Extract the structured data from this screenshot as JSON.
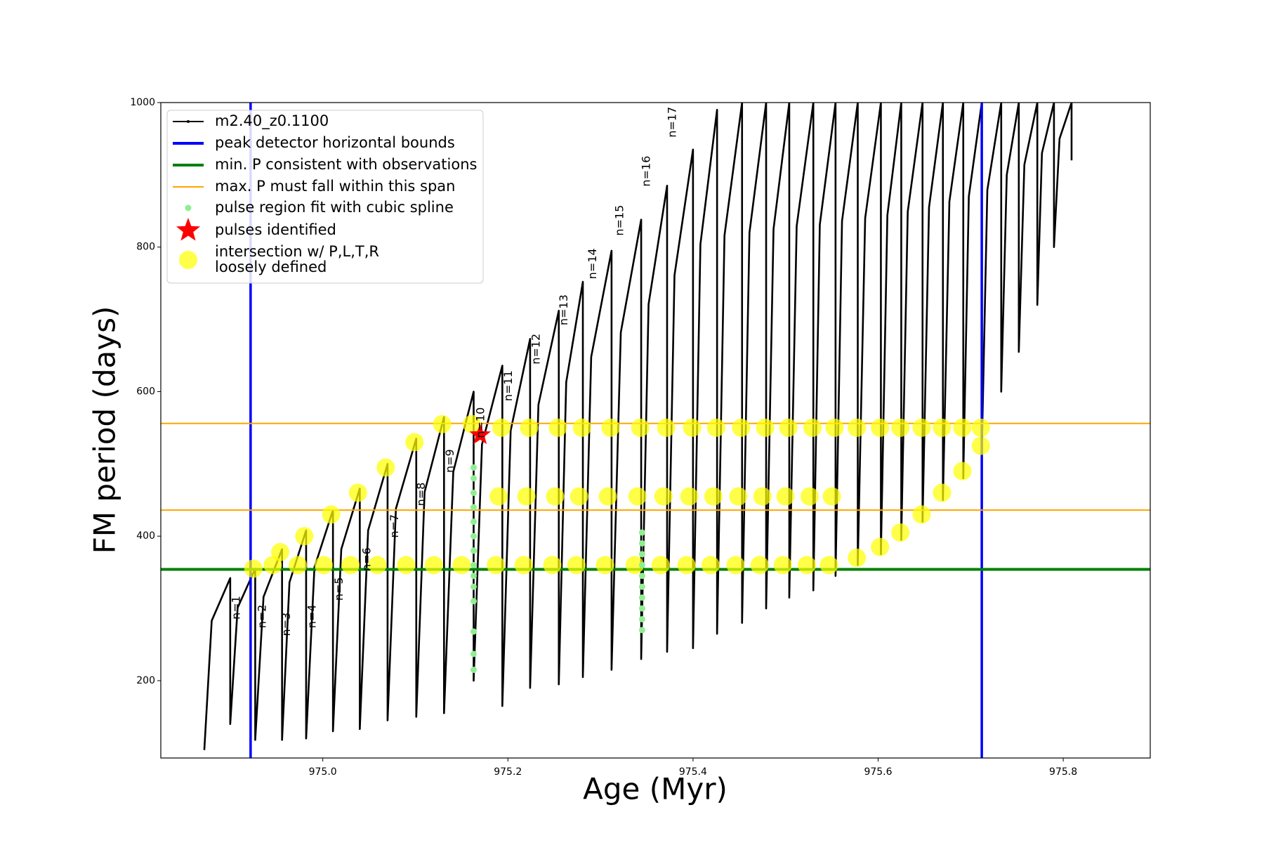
{
  "chart_data": {
    "type": "line",
    "xlabel": "Age (Myr)",
    "ylabel": "FM period (days)",
    "xlim": [
      974.825,
      975.894
    ],
    "ylim": [
      93,
      1000
    ],
    "xticks": [
      {
        "value": 975,
        "label": "975.0"
      },
      975.2,
      975.4,
      975.6,
      975.8
    ],
    "yticks": [
      200,
      400,
      600,
      800,
      1000
    ],
    "grid": false,
    "legend": "upper left",
    "series": [
      {
        "name": "m2.40_z0.1100",
        "type": "line",
        "color": "#000000",
        "x": [
          974.872,
          974.88,
          974.9,
          974.9,
          974.908,
          974.927,
          974.927,
          974.936,
          974.956,
          974.956,
          974.964,
          974.982,
          974.982,
          974.991,
          975.011,
          975.011,
          975.02,
          975.04,
          975.04,
          975.049,
          975.07,
          975.07,
          975.079,
          975.101,
          975.101,
          975.11,
          975.131,
          975.131,
          975.141,
          975.163,
          975.163,
          975.172,
          975.194,
          975.194,
          975.203,
          975.224,
          975.224,
          975.233,
          975.255,
          975.255,
          975.263,
          975.281,
          975.281,
          975.29,
          975.312,
          975.312,
          975.322,
          975.344,
          975.344,
          975.352,
          975.372,
          975.372,
          975.38,
          975.4,
          975.4,
          975.408,
          975.426,
          975.426,
          975.434,
          975.453,
          975.453,
          975.461,
          975.479,
          975.479,
          975.487,
          975.504,
          975.504,
          975.512,
          975.53,
          975.53,
          975.537,
          975.554,
          975.554,
          975.561,
          975.578,
          975.578,
          975.586,
          975.603,
          975.603,
          975.61,
          975.625,
          975.625,
          975.632,
          975.648,
          975.648,
          975.655,
          975.67,
          975.67,
          975.677,
          975.692,
          975.692,
          975.698,
          975.712,
          975.712,
          975.718,
          975.733,
          975.733,
          975.739,
          975.752,
          975.752,
          975.758,
          975.772,
          975.772,
          975.777,
          975.79,
          975.79,
          975.796,
          975.809,
          975.809
        ],
        "values": [
          104,
          283,
          342,
          140,
          301,
          355,
          118,
          316,
          382,
          118,
          336,
          408,
          120,
          357,
          436,
          130,
          382,
          466,
          133,
          408,
          500,
          145,
          438,
          535,
          150,
          461,
          565,
          155,
          489,
          600,
          200,
          527,
          636,
          165,
          546,
          673,
          190,
          582,
          712,
          195,
          613,
          752,
          205,
          648,
          795,
          215,
          682,
          838,
          230,
          721,
          885,
          240,
          761,
          935,
          245,
          804,
          990,
          265,
          816,
          1000,
          280,
          820,
          1000,
          300,
          825,
          1000,
          315,
          829,
          1000,
          325,
          831,
          1000,
          345,
          836,
          1000,
          360,
          840,
          1000,
          375,
          844,
          1000,
          395,
          849,
          1000,
          420,
          855,
          1000,
          450,
          863,
          1000,
          480,
          870,
          1000,
          515,
          879,
          1000,
          600,
          900,
          1000,
          655,
          914,
          1000,
          720,
          930,
          1000,
          800,
          950,
          1000,
          920
        ]
      },
      {
        "name": "peak detector horizontal bounds",
        "type": "vline",
        "color": "#0000ff",
        "x": [
          974.922,
          975.712
        ]
      },
      {
        "name": "min. P consistent with observations",
        "type": "hline",
        "color": "#008000",
        "values": [
          354
        ]
      },
      {
        "name": "max. P must fall within this span",
        "type": "hline",
        "color": "#ffa500",
        "values": [
          436,
          556
        ]
      },
      {
        "name": "intersection w/ P,L,T,R\nloosely defined",
        "type": "scatter",
        "marker": "circle",
        "color": "#ffff00",
        "x": [
          974.925,
          974.946,
          974.954,
          974.973,
          974.98,
          975.001,
          975.009,
          975.03,
          975.038,
          975.059,
          975.068,
          975.09,
          975.099,
          975.12,
          975.129,
          975.15,
          975.161,
          975.187,
          975.19,
          975.193,
          975.217,
          975.22,
          975.223,
          975.248,
          975.251,
          975.254,
          975.274,
          975.277,
          975.28,
          975.305,
          975.308,
          975.311,
          975.337,
          975.34,
          975.343,
          975.365,
          975.368,
          975.371,
          975.393,
          975.396,
          975.399,
          975.419,
          975.422,
          975.425,
          975.446,
          975.449,
          975.452,
          975.472,
          975.475,
          975.478,
          975.497,
          975.5,
          975.503,
          975.523,
          975.526,
          975.529,
          975.547,
          975.55,
          975.553,
          975.577,
          975.577,
          975.602,
          975.602,
          975.624,
          975.624,
          975.647,
          975.647,
          975.669,
          975.669,
          975.691,
          975.691,
          975.711,
          975.711
        ],
        "values": [
          355,
          360,
          378,
          360,
          400,
          360,
          430,
          360,
          460,
          360,
          495,
          360,
          530,
          360,
          555,
          360,
          555,
          360,
          455,
          550,
          360,
          455,
          550,
          360,
          455,
          550,
          360,
          455,
          550,
          360,
          455,
          550,
          360,
          455,
          550,
          360,
          455,
          550,
          360,
          455,
          550,
          360,
          455,
          550,
          360,
          455,
          550,
          360,
          455,
          550,
          360,
          455,
          550,
          360,
          455,
          550,
          360,
          455,
          550,
          370,
          550,
          385,
          550,
          405,
          550,
          430,
          550,
          460,
          550,
          490,
          550,
          525,
          550
        ]
      },
      {
        "name": "pulse region fit with cubic spline",
        "type": "scatter",
        "marker": "dot",
        "color": "#90ee90",
        "x": [
          975.163,
          975.163,
          975.163,
          975.163,
          975.163,
          975.163,
          975.163,
          975.163,
          975.163,
          975.163,
          975.163,
          975.163,
          975.163,
          975.163,
          975.345,
          975.345,
          975.345,
          975.345,
          975.345,
          975.345,
          975.345,
          975.345,
          975.345,
          975.345
        ],
        "values": [
          215,
          237,
          268,
          310,
          330,
          345,
          360,
          380,
          400,
          420,
          440,
          460,
          480,
          495,
          270,
          285,
          300,
          315,
          330,
          345,
          360,
          375,
          390,
          405
        ]
      },
      {
        "name": "pulses identified",
        "type": "scatter",
        "marker": "star",
        "color": "#ff0000",
        "x": [
          975.17
        ],
        "values": [
          540
        ]
      }
    ],
    "annotations": [
      {
        "text": "n=1",
        "x": 974.907,
        "y": 301
      },
      {
        "text": "n=2",
        "x": 974.935,
        "y": 289
      },
      {
        "text": "n=3",
        "x": 974.961,
        "y": 278
      },
      {
        "text": "n=4",
        "x": 974.989,
        "y": 289
      },
      {
        "text": "n=5",
        "x": 975.018,
        "y": 327
      },
      {
        "text": "n=6",
        "x": 975.048,
        "y": 368
      },
      {
        "text": "n=7",
        "x": 975.078,
        "y": 414
      },
      {
        "text": "n=8",
        "x": 975.107,
        "y": 458
      },
      {
        "text": "n=9",
        "x": 975.138,
        "y": 504
      },
      {
        "text": "n=10",
        "x": 975.171,
        "y": 557
      },
      {
        "text": "n=11",
        "x": 975.201,
        "y": 608
      },
      {
        "text": "n=12",
        "x": 975.231,
        "y": 659
      },
      {
        "text": "n=13",
        "x": 975.261,
        "y": 713
      },
      {
        "text": "n=14",
        "x": 975.292,
        "y": 777
      },
      {
        "text": "n=15",
        "x": 975.321,
        "y": 837
      },
      {
        "text": "n=16",
        "x": 975.35,
        "y": 905
      },
      {
        "text": "n=17",
        "x": 975.378,
        "y": 973
      }
    ]
  }
}
